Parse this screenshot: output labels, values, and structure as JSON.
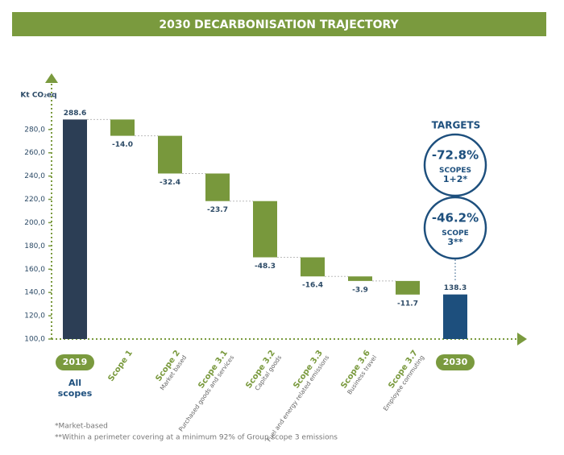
{
  "chart_data": {
    "type": "waterfall",
    "title": "2030 DECARBONISATION TRAJECTORY",
    "y_label": "Kt CO₂eq",
    "categories": [
      "2019",
      "Scope 1",
      "Scope 2",
      "Scope 3.1",
      "Scope 3.2",
      "Scope 3.3",
      "Scope 3.6",
      "Scope 3.7",
      "2030"
    ],
    "sublabels": [
      "All scopes",
      null,
      "Market based",
      "Purchased goods and services",
      "Capital goods",
      "Fuel and energy related emissions",
      "Business travel",
      "Employee commuting",
      null
    ],
    "values": [
      288.6,
      -14.0,
      -32.4,
      -23.7,
      -48.3,
      -16.4,
      -3.9,
      -11.7,
      138.3
    ],
    "value_labels": [
      "288.6",
      "-14.0",
      "-32.4",
      "-23.7",
      "-48.3",
      "-16.4",
      "-3.9",
      "-11.7",
      "138.3"
    ],
    "colors": [
      "#2c3e55",
      "#78983c",
      "#78983c",
      "#78983c",
      "#78983c",
      "#78983c",
      "#78983c",
      "#78983c",
      "#1d4f7d"
    ],
    "ylim": [
      100,
      320
    ],
    "yticks": [
      {
        "value": 100,
        "label": "100,0"
      },
      {
        "value": 120,
        "label": "120,0"
      },
      {
        "value": 140,
        "label": "140,0"
      },
      {
        "value": 160,
        "label": "160,0"
      },
      {
        "value": 180,
        "label": "180,0"
      },
      {
        "value": 200,
        "label": "200,0"
      },
      {
        "value": 220,
        "label": "220,0"
      },
      {
        "value": 240,
        "label": "240,0"
      },
      {
        "value": 260,
        "label": "260,0"
      },
      {
        "value": 280,
        "label": "280,0"
      }
    ],
    "targets": {
      "title": "TARGETS",
      "items": [
        {
          "value": "-72.8%",
          "label": "SCOPES 1+2*"
        },
        {
          "value": "-46.2%",
          "label": "SCOPE 3**"
        }
      ]
    },
    "footnotes": [
      "*Market-based",
      "**Within a perimeter covering at a minimum 92% of Group scope 3 emissions"
    ]
  }
}
